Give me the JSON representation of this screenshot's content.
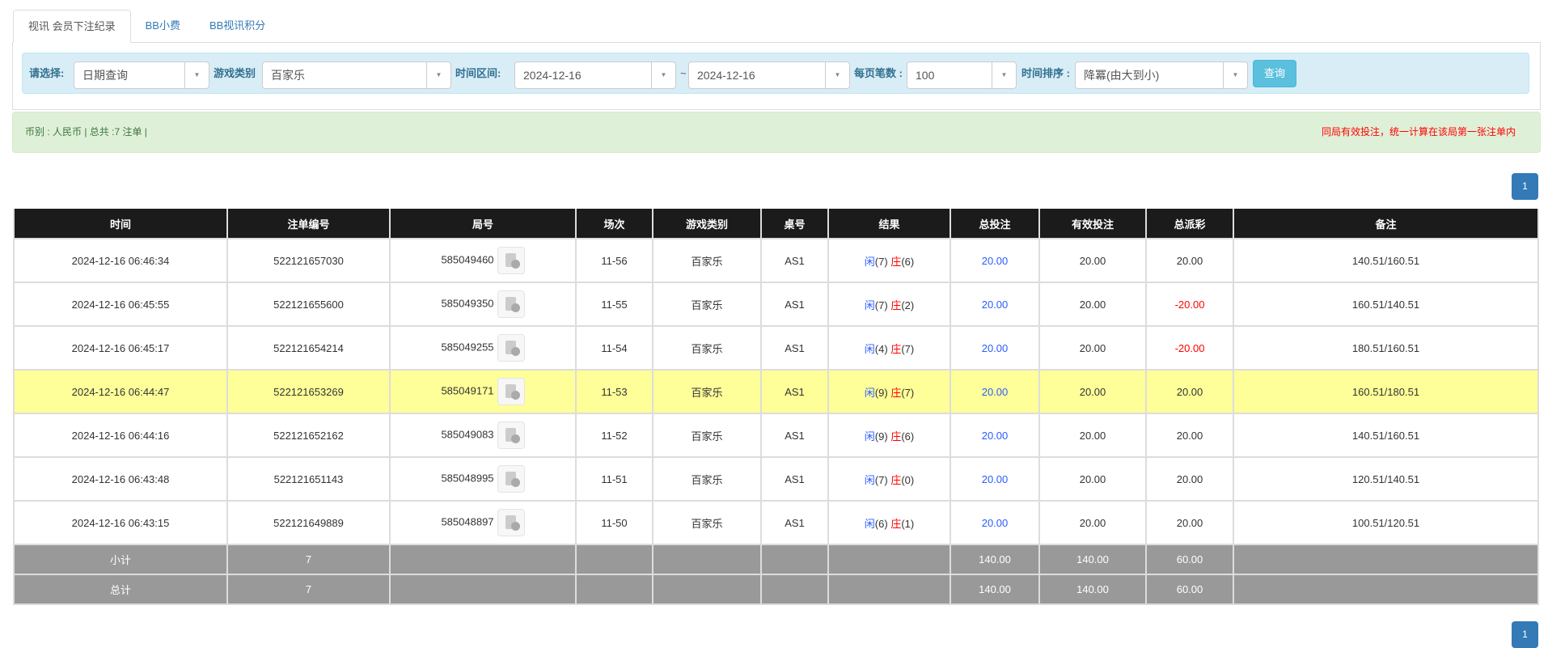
{
  "tabs": [
    "视讯 会员下注纪录",
    "BB小费",
    "BB视讯积分"
  ],
  "filter": {
    "select_label": "请选择:",
    "select_value": "日期查询",
    "game_label": "游戏类别",
    "game_value": "百家乐",
    "range_label": "时间区间:",
    "date_from": "2024-12-16",
    "tilde": "~",
    "date_to": "2024-12-16",
    "per_page_label": "每页笔数 :",
    "per_page_value": "100",
    "sort_label": "时间排序 :",
    "sort_value": "降冪(由大到小)",
    "query_button": "查询"
  },
  "info": {
    "left": "币别 : 人民币 | 总共 :7 注单 |",
    "right": "同局有效投注，统一计算在该局第一张注单内"
  },
  "pagination": {
    "current": "1"
  },
  "colors": {
    "header": "#1b1b1b",
    "highlight": "#ffff99",
    "summary": "#999999",
    "player": "#2a5cff",
    "banker": "#ff0000"
  },
  "table": {
    "headers": [
      "时间",
      "注单编号",
      "局号",
      "场次",
      "游戏类别",
      "桌号",
      "结果",
      "总投注",
      "有效投注",
      "总派彩",
      "备注"
    ],
    "rows": [
      {
        "time": "2024-12-16 06:46:34",
        "bet_id": "522121657030",
        "round": "585049460",
        "session": "11-56",
        "game": "百家乐",
        "table": "AS1",
        "p": "闲",
        "pv": "(7)",
        "b": "庄",
        "bv": "(6)",
        "total": "20.00",
        "valid": "20.00",
        "payout": "20.00",
        "neg": false,
        "note": "140.51/160.51",
        "hl": false
      },
      {
        "time": "2024-12-16 06:45:55",
        "bet_id": "522121655600",
        "round": "585049350",
        "session": "11-55",
        "game": "百家乐",
        "table": "AS1",
        "p": "闲",
        "pv": "(7)",
        "b": "庄",
        "bv": "(2)",
        "total": "20.00",
        "valid": "20.00",
        "payout": "-20.00",
        "neg": true,
        "note": "160.51/140.51",
        "hl": false
      },
      {
        "time": "2024-12-16 06:45:17",
        "bet_id": "522121654214",
        "round": "585049255",
        "session": "11-54",
        "game": "百家乐",
        "table": "AS1",
        "p": "闲",
        "pv": "(4)",
        "b": "庄",
        "bv": "(7)",
        "total": "20.00",
        "valid": "20.00",
        "payout": "-20.00",
        "neg": true,
        "note": "180.51/160.51",
        "hl": false
      },
      {
        "time": "2024-12-16 06:44:47",
        "bet_id": "522121653269",
        "round": "585049171",
        "session": "11-53",
        "game": "百家乐",
        "table": "AS1",
        "p": "闲",
        "pv": "(9)",
        "b": "庄",
        "bv": "(7)",
        "total": "20.00",
        "valid": "20.00",
        "payout": "20.00",
        "neg": false,
        "note": "160.51/180.51",
        "hl": true
      },
      {
        "time": "2024-12-16 06:44:16",
        "bet_id": "522121652162",
        "round": "585049083",
        "session": "11-52",
        "game": "百家乐",
        "table": "AS1",
        "p": "闲",
        "pv": "(9)",
        "b": "庄",
        "bv": "(6)",
        "total": "20.00",
        "valid": "20.00",
        "payout": "20.00",
        "neg": false,
        "note": "140.51/160.51",
        "hl": false
      },
      {
        "time": "2024-12-16 06:43:48",
        "bet_id": "522121651143",
        "round": "585048995",
        "session": "11-51",
        "game": "百家乐",
        "table": "AS1",
        "p": "闲",
        "pv": "(7)",
        "b": "庄",
        "bv": "(0)",
        "total": "20.00",
        "valid": "20.00",
        "payout": "20.00",
        "neg": false,
        "note": "120.51/140.51",
        "hl": false
      },
      {
        "time": "2024-12-16 06:43:15",
        "bet_id": "522121649889",
        "round": "585048897",
        "session": "11-50",
        "game": "百家乐",
        "table": "AS1",
        "p": "闲",
        "pv": "(6)",
        "b": "庄",
        "bv": "(1)",
        "total": "20.00",
        "valid": "20.00",
        "payout": "20.00",
        "neg": false,
        "note": "100.51/120.51",
        "hl": false
      }
    ],
    "summary": [
      {
        "label": "小计",
        "count": "7",
        "total": "140.00",
        "valid": "140.00",
        "payout": "60.00"
      },
      {
        "label": "总计",
        "count": "7",
        "total": "140.00",
        "valid": "140.00",
        "payout": "60.00"
      }
    ]
  }
}
